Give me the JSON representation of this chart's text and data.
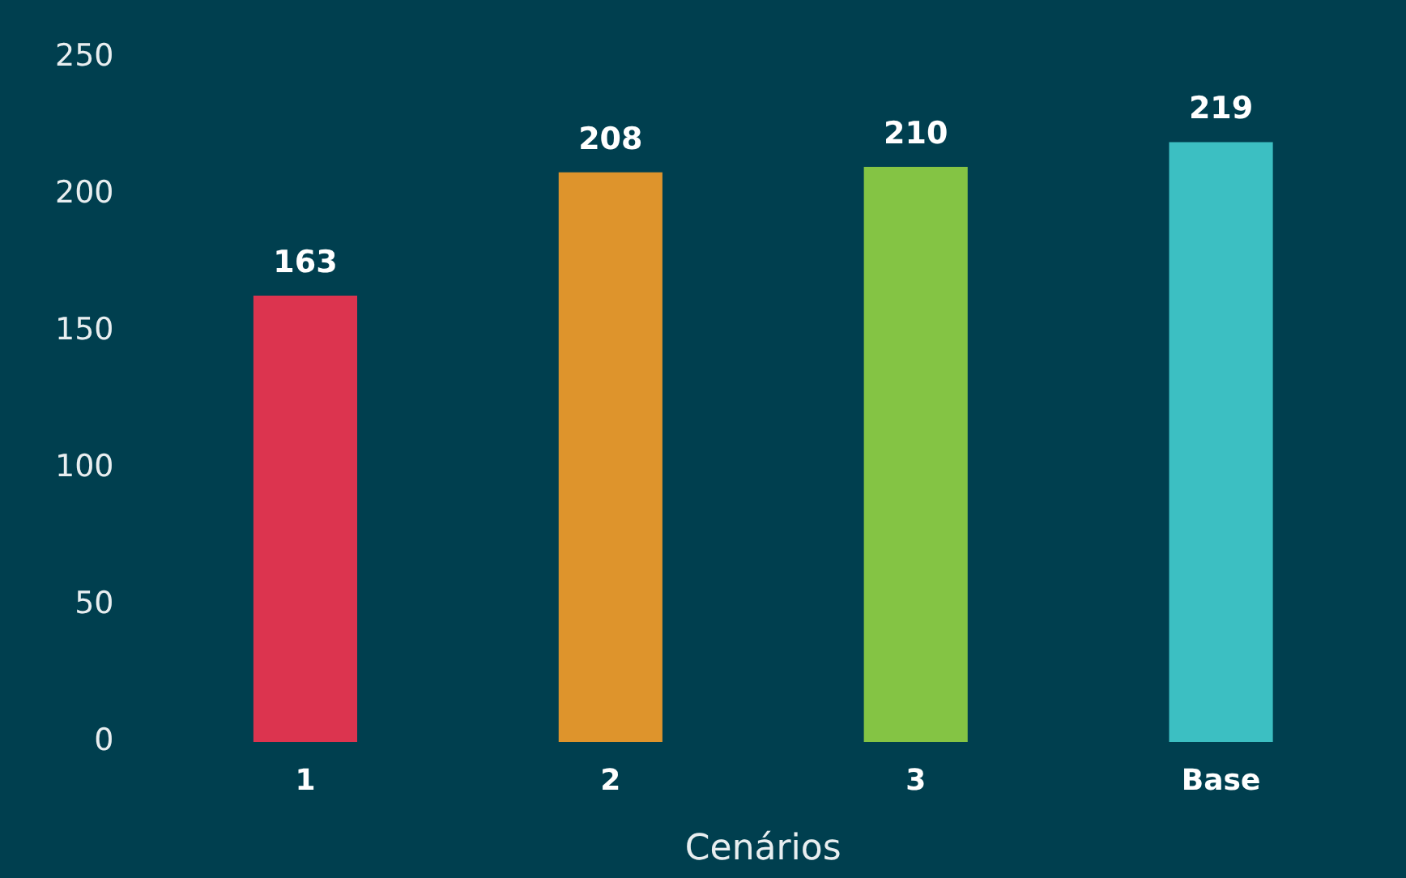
{
  "chart_data": {
    "type": "bar",
    "xlabel": "Cenários",
    "categories": [
      "1",
      "2",
      "3",
      "Base"
    ],
    "values": [
      163,
      208,
      210,
      219
    ],
    "colors": [
      "#dc344f",
      "#de942c",
      "#84c444",
      "#3cbfc2"
    ],
    "ylim": [
      0,
      250
    ],
    "yticks": [
      0,
      50,
      100,
      150,
      200,
      250
    ],
    "grid": false,
    "legend": false,
    "data_labels": true
  }
}
